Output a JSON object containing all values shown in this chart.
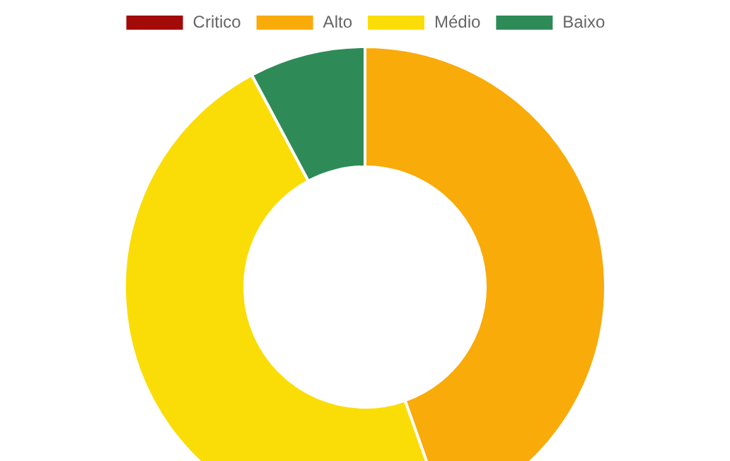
{
  "chart_data": {
    "type": "donut",
    "categories": [
      "Critico",
      "Alto",
      "Médio",
      "Baixo"
    ],
    "values": [
      0,
      44.6,
      47.6,
      7.8
    ],
    "colors": [
      "#a30b0b",
      "#f9ab0a",
      "#fadd06",
      "#2e8b57"
    ],
    "legend": "top"
  }
}
